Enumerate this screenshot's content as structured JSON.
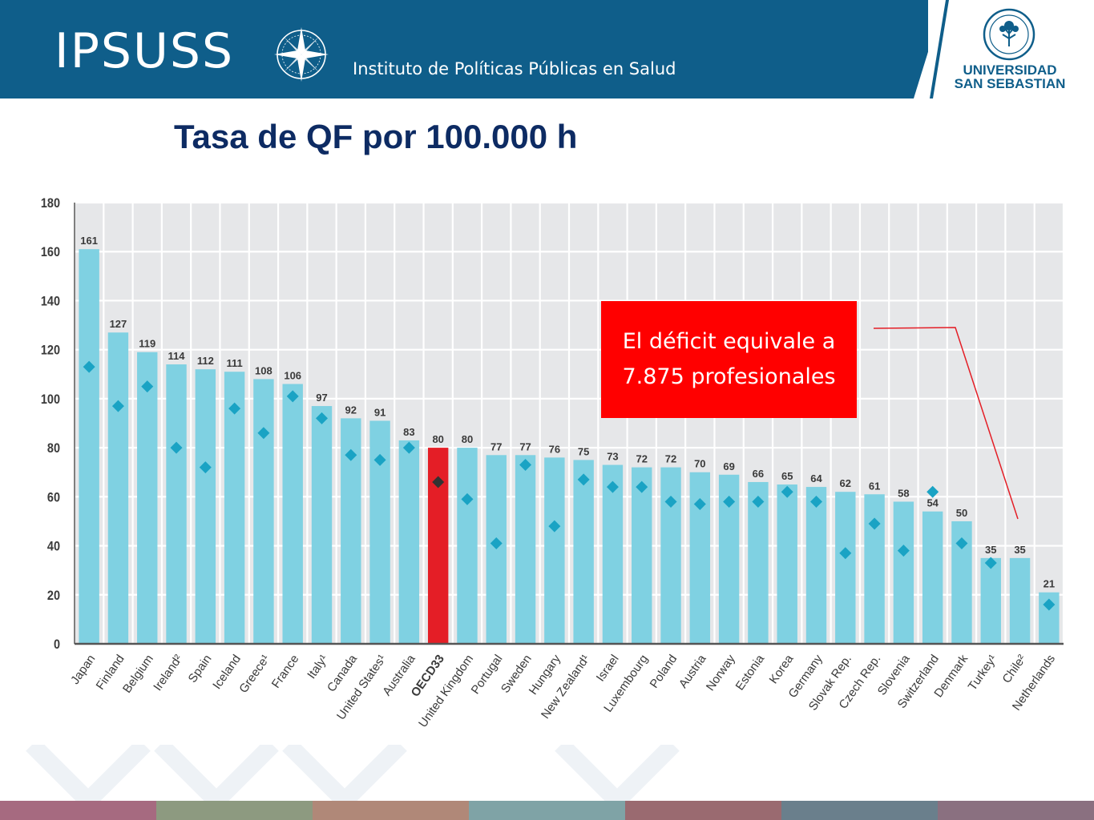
{
  "header": {
    "logo_text": "IPSUSS",
    "institute_name": "Instituto de Políticas Públicas en Salud",
    "university_line1": "UNIVERSIDAD",
    "university_line2": "SAN SEBASTIAN"
  },
  "slide": {
    "title": "Tasa de QF por 100.000 h",
    "callout_text": "El déficit equivale a\n7.875 profesionales"
  },
  "colors": {
    "header_bg": "#0f5e8a",
    "bar": "#7fd1e2",
    "highlight_bar": "#e41e26",
    "marker": "#1aa3c4",
    "highlight_marker": "#333333",
    "callout_bg": "#ff0000",
    "title": "#0d2b63",
    "footer_band": [
      "#a66a80",
      "#8d9a80",
      "#b08878",
      "#7fa3a6",
      "#9a6a70",
      "#6a7f8c",
      "#8a7080"
    ]
  },
  "chart_data": {
    "type": "bar",
    "categories": [
      "Japan",
      "Finland",
      "Belgium",
      "Ireland²",
      "Spain",
      "Iceland",
      "Greece¹",
      "France",
      "Italy¹",
      "Canada",
      "United States¹",
      "Australia",
      "OECD33",
      "United Kingdom",
      "Portugal",
      "Sweden",
      "Hungary",
      "New Zealand¹",
      "Israel",
      "Luxembourg",
      "Poland",
      "Austria",
      "Norway",
      "Estonia",
      "Korea",
      "Germany",
      "Slovak Rep.",
      "Czech Rep.",
      "Slovenia",
      "Switzerland",
      "Denmark",
      "Turkey¹",
      "Chile²",
      "Netherlands"
    ],
    "series": [
      {
        "values": [
          161,
          127,
          119,
          114,
          112,
          111,
          108,
          106,
          97,
          92,
          91,
          83,
          80,
          80,
          77,
          77,
          76,
          75,
          73,
          72,
          72,
          70,
          69,
          66,
          65,
          64,
          62,
          61,
          58,
          54,
          50,
          35,
          35,
          21
        ]
      },
      {
        "values": [
          113,
          97,
          105,
          80,
          72,
          96,
          86,
          101,
          92,
          77,
          75,
          80,
          66,
          59,
          41,
          73,
          48,
          67,
          64,
          64,
          58,
          57,
          58,
          58,
          62,
          58,
          37,
          49,
          38,
          62,
          41,
          33,
          null,
          16
        ]
      }
    ],
    "highlight_category": "OECD33",
    "data_labels": [
      "161",
      "127",
      "119",
      "114",
      "112",
      "111",
      "108",
      "106",
      "97",
      "92",
      "91",
      "83",
      "80",
      "80",
      "77",
      "77",
      "76",
      "75",
      "73",
      "72",
      "72",
      "70",
      "69",
      "66",
      "65",
      "64",
      "62",
      "61",
      "58",
      "54",
      "50",
      "35",
      "35",
      "21"
    ],
    "ylim": [
      0,
      180
    ],
    "yticks": [
      0,
      20,
      40,
      60,
      80,
      100,
      120,
      140,
      160,
      180
    ],
    "grid": true
  }
}
